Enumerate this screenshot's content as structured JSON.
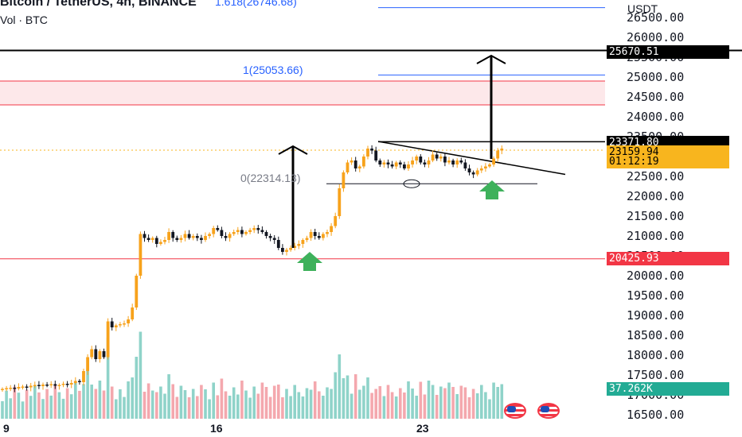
{
  "header": {
    "symbol_line": "Bitcoin / TetherUS, 4h, BINANCE",
    "volume_line": "Vol · BTC"
  },
  "axis": {
    "unit": "USDT",
    "price_ticks": [
      "26500.00",
      "26000.00",
      "25500.00",
      "25000.00",
      "24500.00",
      "24000.00",
      "23500.00",
      "23000.00",
      "22500.00",
      "22000.00",
      "21500.00",
      "21000.00",
      "20500.00",
      "20000.00",
      "19500.00",
      "19000.00",
      "18500.00",
      "18000.00",
      "17500.00",
      "17000.00",
      "16500.00"
    ],
    "time_ticks": [
      "9",
      "16",
      "23"
    ]
  },
  "tags": {
    "target": "25670.51",
    "breakout": "23371.80",
    "last_price": "23159.94",
    "countdown": "01:12:19",
    "support": "20425.93",
    "volume": "37.262K"
  },
  "fib_labels": {
    "f1618": "1.618(26746.68)",
    "f1": "1(25053.66)",
    "f0": "0(22314.13)"
  },
  "colors": {
    "up": "#f7a21b",
    "down": "#131722",
    "vol_up": "#8fd3c9",
    "vol_down": "#f4a8ae",
    "resistance": "#f23645",
    "fib": "#2962ff",
    "arrow_up_marker": "#3eb15b"
  },
  "chart_data": {
    "type": "candlestick",
    "title": "Bitcoin / TetherUS, 4h, BINANCE",
    "ylim": [
      16300,
      27000
    ],
    "closes": [
      17150,
      17170,
      17180,
      17160,
      17200,
      17210,
      17190,
      17230,
      17250,
      17220,
      17260,
      17240,
      17270,
      17230,
      17250,
      17280,
      17260,
      17300,
      17350,
      17320,
      17600,
      17950,
      18150,
      17900,
      18100,
      17950,
      18850,
      18700,
      18750,
      18780,
      18800,
      18900,
      19200,
      20000,
      21050,
      20950,
      20900,
      20950,
      20800,
      20850,
      20900,
      21100,
      20950,
      20900,
      20950,
      21050,
      20950,
      21000,
      20950,
      20900,
      21000,
      21050,
      21200,
      21150,
      21000,
      20950,
      21050,
      21100,
      21150,
      21050,
      21100,
      21150,
      21200,
      21150,
      21100,
      21000,
      20950,
      20900,
      20700,
      20600,
      20650,
      20700,
      20750,
      20800,
      20900,
      20950,
      21100,
      21000,
      20950,
      21050,
      21100,
      21250,
      21500,
      22200,
      22600,
      22850,
      22900,
      22700,
      22750,
      23000,
      23200,
      23150,
      22900,
      22800,
      22850,
      22800,
      22750,
      22850,
      22800,
      22700,
      22800,
      22900,
      23000,
      22850,
      22800,
      22900,
      23050,
      22950,
      23000,
      22850,
      22900,
      22800,
      22900,
      22850,
      22700,
      22600,
      22550,
      22650,
      22700,
      22750,
      22800,
      22950,
      23150,
      23200
    ],
    "volume_scale": "relative"
  }
}
